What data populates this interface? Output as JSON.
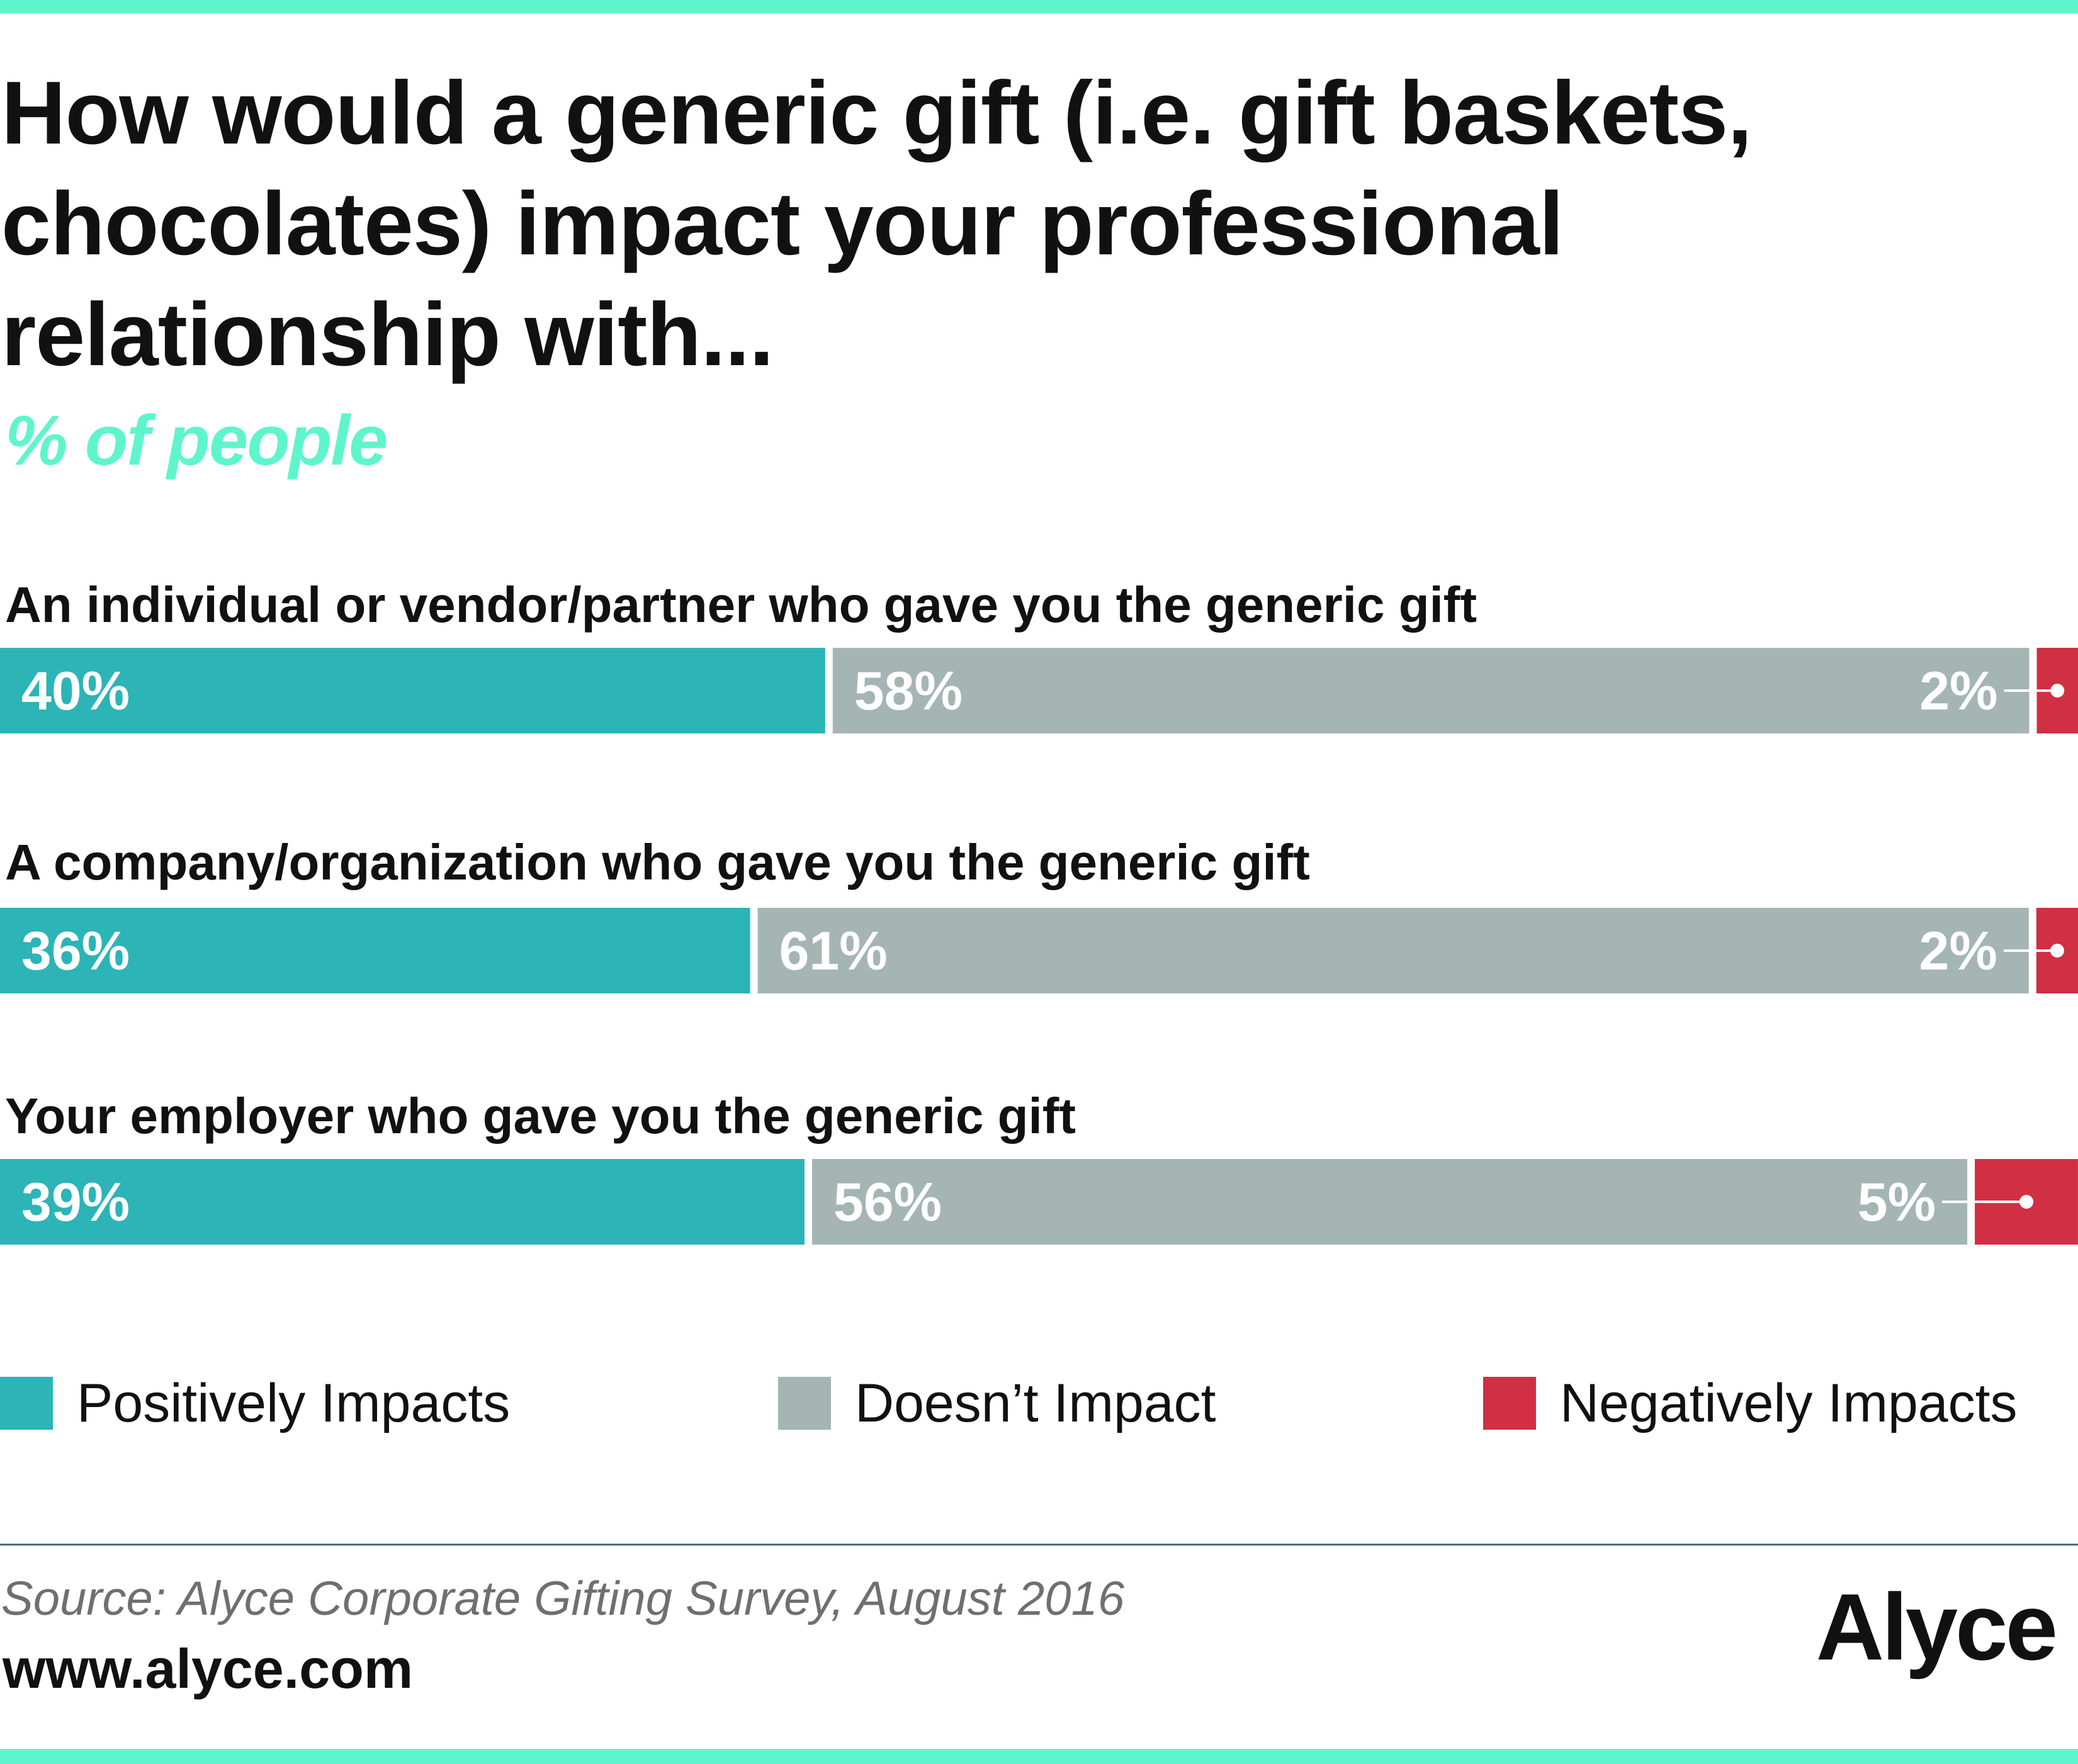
{
  "title": "How would a generic gift (i.e. gift baskets, chocolates) impact your professional relationship with...",
  "subtitle": "% of people",
  "colors": {
    "positive": "#2cb4b7",
    "neutral": "#a4b5b4",
    "negative": "#d12f44",
    "accent": "#5ff5cc",
    "divider": "#4a6b8a"
  },
  "chart_data": {
    "type": "bar",
    "orientation": "horizontal",
    "stacked": true,
    "categories": [
      "An individual or vendor/partner who gave you the generic gift",
      "A company/organization who gave you the generic gift",
      "Your employer who gave you the generic gift"
    ],
    "series": [
      {
        "name": "Positively Impacts",
        "values": [
          40,
          36,
          39
        ],
        "labels": [
          "40%",
          "36%",
          "39%"
        ]
      },
      {
        "name": "Doesn’t Impact",
        "values": [
          58,
          61,
          56
        ],
        "labels": [
          "58%",
          "61%",
          "56%"
        ]
      },
      {
        "name": "Negatively Impacts",
        "values": [
          2,
          2,
          5
        ],
        "labels": [
          "2%",
          "2%",
          "5%"
        ]
      }
    ],
    "legend_position": "bottom"
  },
  "legend": {
    "items": [
      {
        "label": "Positively Impacts",
        "color": "#2cb4b7"
      },
      {
        "label": "Doesn’t Impact",
        "color": "#a4b5b4"
      },
      {
        "label": "Negatively Impacts",
        "color": "#d12f44"
      }
    ]
  },
  "footer": {
    "source": "Source: Alyce Corporate Gifting Survey, August 2016",
    "url": "www.alyce.com",
    "logo": "Alyce"
  }
}
